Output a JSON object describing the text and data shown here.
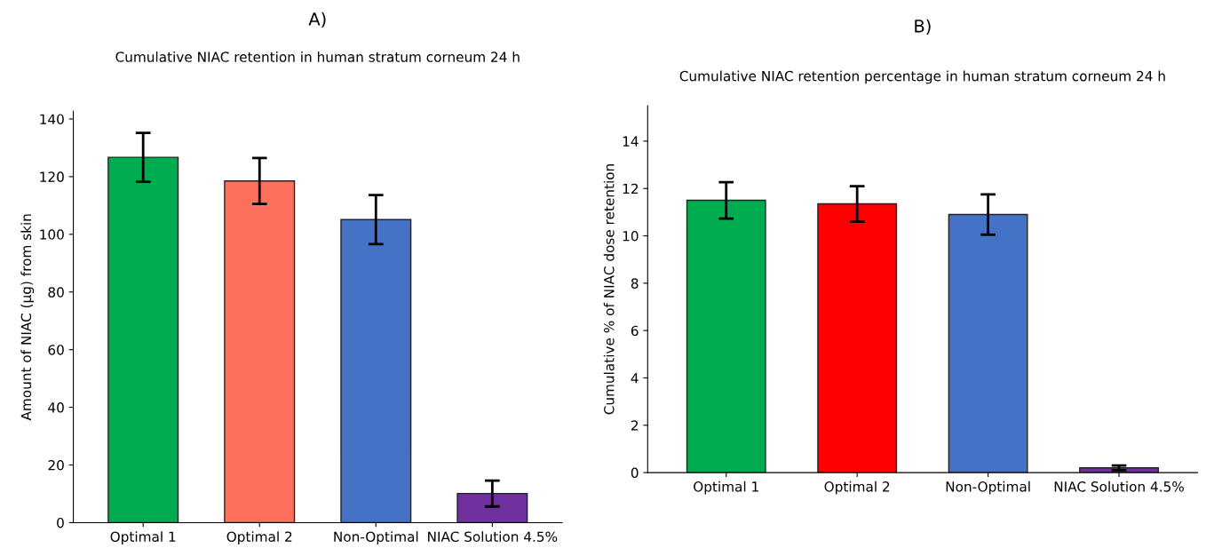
{
  "chart_data": [
    {
      "type": "bar",
      "title": "A)",
      "subtitle": "Cumulative NIAC retention in human stratum corneum 24 h",
      "ylabel": "Amount of NIAC (µg) from skin",
      "categories": [
        "Optimal 1",
        "Optimal 2",
        "Non-Optimal",
        "NIAC Solution 4.5%"
      ],
      "values": [
        126.7,
        118.5,
        105.1,
        10.1
      ],
      "errors": [
        8.5,
        8,
        8.5,
        4.5
      ],
      "colors": [
        "#00ac4f",
        "#fe6f5e",
        "#4472c4",
        "#7030a0"
      ],
      "ylim": [
        0,
        142.7
      ],
      "yticks": [
        0,
        20,
        40,
        60,
        80,
        100,
        120,
        140
      ],
      "grid": false,
      "legend": false
    },
    {
      "type": "bar",
      "title": "B)",
      "subtitle": "Cumulative NIAC retention percentage in human stratum corneum 24 h",
      "ylabel": "Cumulative % of NIAC dose retention",
      "categories": [
        "Optimal 1",
        "Optimal 2",
        "Non-Optimal",
        "NIAC Solution 4.5%"
      ],
      "values": [
        11.5,
        11.35,
        10.9,
        0.2
      ],
      "errors": [
        0.77,
        0.75,
        0.85,
        0.1
      ],
      "colors": [
        "#00ac4f",
        "#ff0000",
        "#4472c4",
        "#7030a0"
      ],
      "ylim": [
        0,
        15.5
      ],
      "yticks": [
        0,
        2,
        4,
        6,
        8,
        10,
        12,
        14
      ],
      "grid": false,
      "legend": false
    }
  ]
}
